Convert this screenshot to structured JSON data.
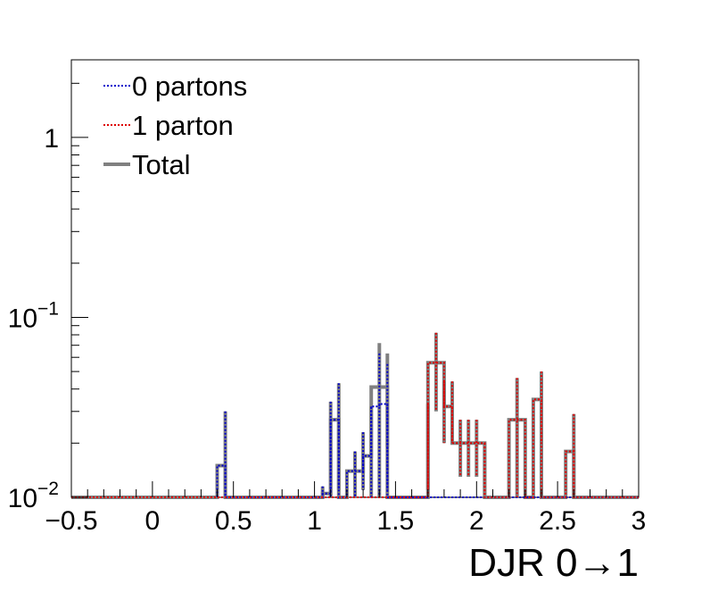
{
  "chart_data": {
    "type": "histogram",
    "xlabel": "DJR 0→1",
    "ylabel": "",
    "xlim": [
      -0.5,
      3
    ],
    "ylim": [
      0.01,
      2.7
    ],
    "yscale": "log",
    "x_ticks": [
      "−0.5",
      "0",
      "0.5",
      "1",
      "1.5",
      "2",
      "2.5",
      "3"
    ],
    "y_ticks": [
      {
        "base": "10",
        "exp": "−2"
      },
      {
        "base": "10",
        "exp": "−1"
      },
      {
        "base": "1",
        "exp": ""
      }
    ],
    "bin_edges": [
      -0.5,
      3.0
    ],
    "bin_width": 0.05,
    "legend": {
      "placement": "top-left",
      "entries": [
        {
          "label": "0 partons",
          "color": "#0000cc",
          "style": "dotted"
        },
        {
          "label": "1 parton",
          "color": "#dd0000",
          "style": "dotted"
        },
        {
          "label": "Total",
          "color": "#808080",
          "style": "solid"
        }
      ]
    },
    "series": [
      {
        "name": "0 partons",
        "color": "#0000cc",
        "bins": [
          {
            "x": 0.45,
            "y": 0.015,
            "err": 0.015
          },
          {
            "x": 1.05,
            "y": 0.0105,
            "err": 0.001
          },
          {
            "x": 1.1,
            "y": 0.022,
            "err": 0.012
          },
          {
            "x": 1.15,
            "y": 0.027,
            "err": 0.016
          },
          {
            "x": 1.25,
            "y": 0.014,
            "err": 0.004
          },
          {
            "x": 1.3,
            "y": 0.017,
            "err": 0.006
          },
          {
            "x": 1.35,
            "y": 0.021,
            "err": 0.011
          },
          {
            "x": 1.4,
            "y": 0.032,
            "err": 0.031
          },
          {
            "x": 1.45,
            "y": 0.033,
            "err": 0.022
          }
        ]
      },
      {
        "name": "1 parton",
        "color": "#dd0000",
        "bins": [
          {
            "x": 1.7,
            "y": 0.022,
            "err": 0.011
          },
          {
            "x": 1.75,
            "y": 0.056,
            "err": 0.026
          },
          {
            "x": 1.8,
            "y": 0.032,
            "err": 0.012
          },
          {
            "x": 1.85,
            "y": 0.032,
            "err": 0.012
          },
          {
            "x": 1.9,
            "y": 0.02,
            "err": 0.007
          },
          {
            "x": 1.95,
            "y": 0.02,
            "err": 0.007
          },
          {
            "x": 2.0,
            "y": 0.02,
            "err": 0.007
          },
          {
            "x": 2.05,
            "y": 0.015,
            "err": 0.005
          },
          {
            "x": 2.25,
            "y": 0.027,
            "err": 0.019
          },
          {
            "x": 2.4,
            "y": 0.035,
            "err": 0.015
          },
          {
            "x": 2.6,
            "y": 0.018,
            "err": 0.011
          }
        ]
      },
      {
        "name": "Total",
        "color": "#808080",
        "bins": [
          {
            "x": 0.45,
            "y": 0.015,
            "err": 0.015
          },
          {
            "x": 1.05,
            "y": 0.0105,
            "err": 0.001
          },
          {
            "x": 1.1,
            "y": 0.022,
            "err": 0.012
          },
          {
            "x": 1.15,
            "y": 0.027,
            "err": 0.016
          },
          {
            "x": 1.25,
            "y": 0.014,
            "err": 0.004
          },
          {
            "x": 1.3,
            "y": 0.017,
            "err": 0.006
          },
          {
            "x": 1.35,
            "y": 0.021,
            "err": 0.011
          },
          {
            "x": 1.4,
            "y": 0.041,
            "err": 0.031
          },
          {
            "x": 1.45,
            "y": 0.041,
            "err": 0.022
          },
          {
            "x": 1.7,
            "y": 0.022,
            "err": 0.011
          },
          {
            "x": 1.75,
            "y": 0.056,
            "err": 0.026
          },
          {
            "x": 1.8,
            "y": 0.032,
            "err": 0.012
          },
          {
            "x": 1.85,
            "y": 0.032,
            "err": 0.012
          },
          {
            "x": 1.9,
            "y": 0.02,
            "err": 0.007
          },
          {
            "x": 1.95,
            "y": 0.02,
            "err": 0.007
          },
          {
            "x": 2.0,
            "y": 0.02,
            "err": 0.007
          },
          {
            "x": 2.05,
            "y": 0.015,
            "err": 0.005
          },
          {
            "x": 2.25,
            "y": 0.027,
            "err": 0.019
          },
          {
            "x": 2.4,
            "y": 0.035,
            "err": 0.015
          },
          {
            "x": 2.6,
            "y": 0.018,
            "err": 0.011
          }
        ]
      }
    ]
  }
}
